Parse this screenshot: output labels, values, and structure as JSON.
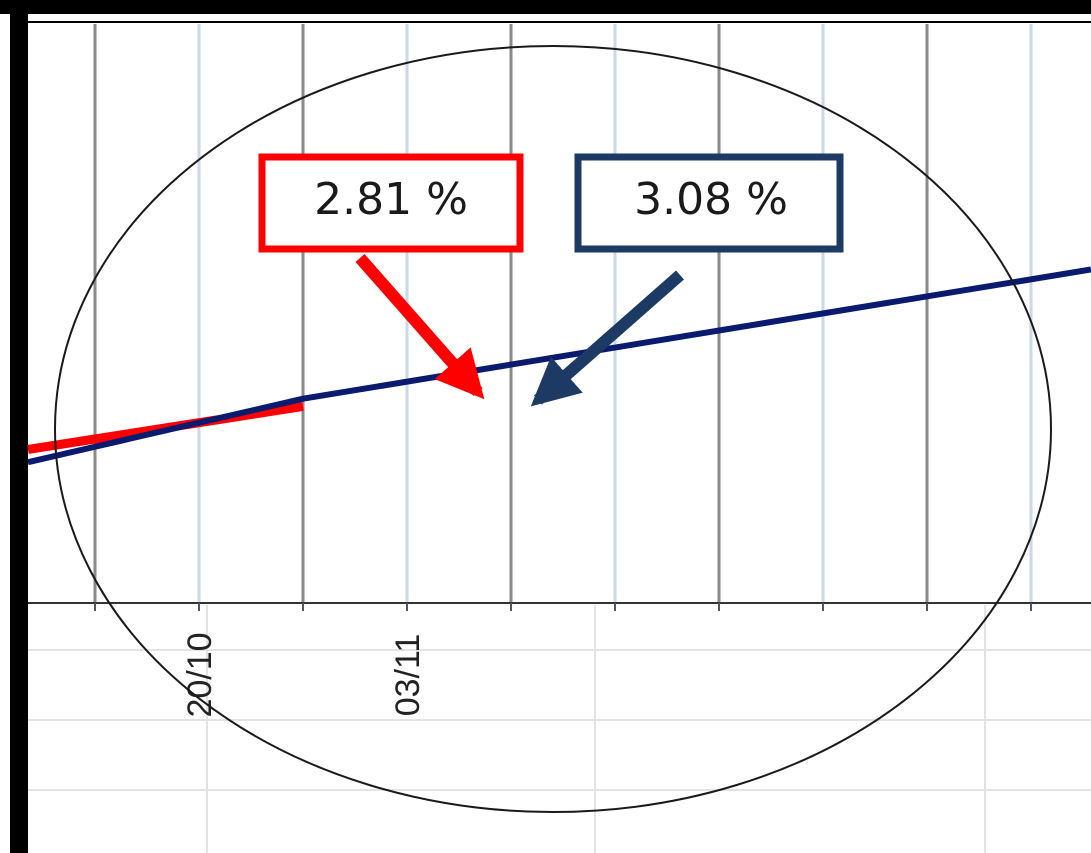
{
  "chart_data": {
    "type": "line",
    "title": "",
    "xlabel": "",
    "ylabel": "",
    "x_ticks": [
      "20/10",
      "03/11"
    ],
    "grid": true,
    "series": [
      {
        "color": "#ff0000",
        "points": [
          {
            "x": "13/10",
            "y": 2.6
          },
          {
            "x": "27/10",
            "y": 2.81
          }
        ]
      },
      {
        "color": "#0a1a6e",
        "points": [
          {
            "x": "13/10",
            "y": 2.55
          },
          {
            "x": "27/10",
            "y": 2.86
          },
          {
            "x": "10/11",
            "y": 3.08
          }
        ]
      }
    ],
    "callouts": [
      {
        "id": "red",
        "text": "2.81 %",
        "color": "#ff0000"
      },
      {
        "id": "navy",
        "text": "3.08 %",
        "color": "#1c3a63"
      }
    ],
    "highlight": "ellipse"
  }
}
